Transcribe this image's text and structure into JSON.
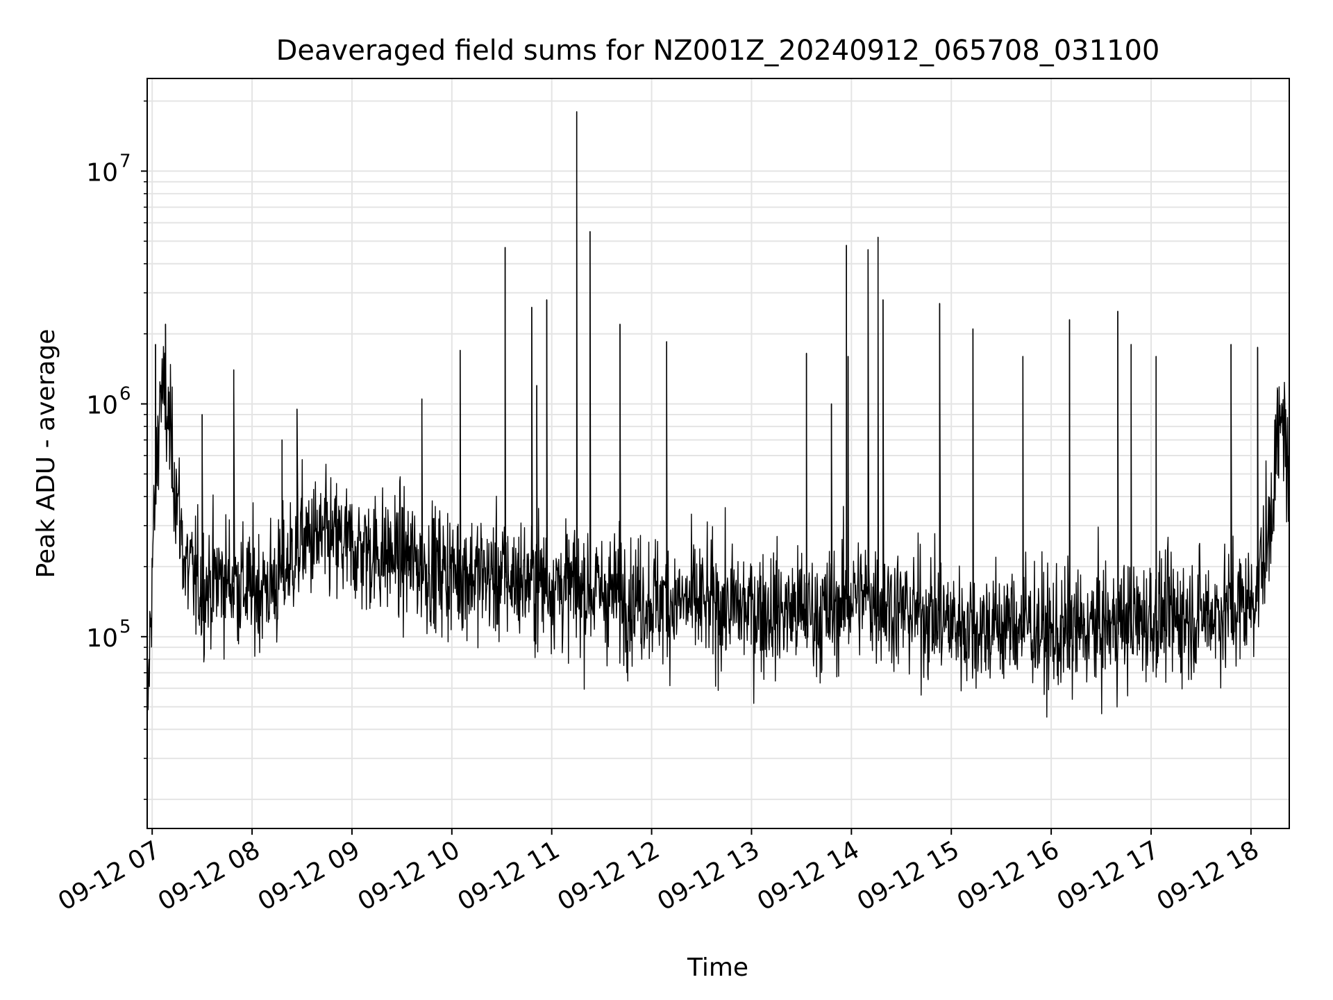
{
  "chart_data": {
    "type": "line",
    "title": "Deaveraged field sums for NZ001Z_20240912_065708_031100",
    "xlabel": "Time",
    "ylabel": "Peak ADU - average",
    "x_ticks": [
      "09-12 07",
      "09-12 08",
      "09-12 09",
      "09-12 10",
      "09-12 11",
      "09-12 12",
      "09-12 13",
      "09-12 14",
      "09-12 15",
      "09-12 16",
      "09-12 17",
      "09-12 18"
    ],
    "y_ticks": [
      {
        "base": "10",
        "exp": "5",
        "value": 100000
      },
      {
        "base": "10",
        "exp": "6",
        "value": 1000000
      },
      {
        "base": "10",
        "exp": "7",
        "value": 10000000
      }
    ],
    "y_scale": "log",
    "xlim": [
      "2024-09-12 06:57",
      "2024-09-12 18:23"
    ],
    "ylim": [
      15000,
      25000000
    ],
    "grid": true,
    "line_color": "#000000",
    "series": [
      {
        "x": [
          "2024-09-12 06:57",
          "2024-09-12 07:00",
          "2024-09-12 07:05",
          "2024-09-12 07:10",
          "2024-09-12 07:15",
          "2024-09-12 07:20",
          "2024-09-12 07:30",
          "2024-09-12 07:40",
          "2024-09-12 07:50",
          "2024-09-12 08:00",
          "2024-09-12 08:15",
          "2024-09-12 08:30",
          "2024-09-12 08:45",
          "2024-09-12 09:00",
          "2024-09-12 09:15",
          "2024-09-12 09:30",
          "2024-09-12 09:45",
          "2024-09-12 10:00",
          "2024-09-12 10:15",
          "2024-09-12 10:30",
          "2024-09-12 10:45",
          "2024-09-12 11:00",
          "2024-09-12 11:15",
          "2024-09-12 11:30",
          "2024-09-12 11:45",
          "2024-09-12 12:00",
          "2024-09-12 12:15",
          "2024-09-12 12:30",
          "2024-09-12 12:45",
          "2024-09-12 13:00",
          "2024-09-12 13:15",
          "2024-09-12 13:30",
          "2024-09-12 13:45",
          "2024-09-12 14:00",
          "2024-09-12 14:15",
          "2024-09-12 14:30",
          "2024-09-12 14:45",
          "2024-09-12 15:00",
          "2024-09-12 15:15",
          "2024-09-12 15:30",
          "2024-09-12 15:45",
          "2024-09-12 16:00",
          "2024-09-12 16:15",
          "2024-09-12 16:30",
          "2024-09-12 16:45",
          "2024-09-12 17:00",
          "2024-09-12 17:15",
          "2024-09-12 17:30",
          "2024-09-12 17:45",
          "2024-09-12 18:00",
          "2024-09-12 18:10",
          "2024-09-12 18:15",
          "2024-09-12 18:20",
          "2024-09-12 18:23"
        ],
        "y": [
          40000,
          200000,
          1200000,
          800000,
          400000,
          200000,
          160000,
          180000,
          170000,
          160000,
          170000,
          260000,
          260000,
          240000,
          230000,
          220000,
          200000,
          190000,
          185000,
          180000,
          175000,
          170000,
          160000,
          155000,
          150000,
          145000,
          140000,
          138000,
          135000,
          132000,
          130000,
          128000,
          125000,
          150000,
          145000,
          130000,
          125000,
          115000,
          110000,
          112000,
          115000,
          100000,
          105000,
          110000,
          115000,
          120000,
          122000,
          125000,
          130000,
          140000,
          250000,
          600000,
          900000,
          350000
        ]
      }
    ],
    "spikes": [
      {
        "x": "2024-09-12 07:02",
        "y": 1800000
      },
      {
        "x": "2024-09-12 07:08",
        "y": 2200000
      },
      {
        "x": "2024-09-12 07:30",
        "y": 900000
      },
      {
        "x": "2024-09-12 07:49",
        "y": 1400000
      },
      {
        "x": "2024-09-12 08:18",
        "y": 700000
      },
      {
        "x": "2024-09-12 08:27",
        "y": 950000
      },
      {
        "x": "2024-09-12 09:42",
        "y": 1050000
      },
      {
        "x": "2024-09-12 10:05",
        "y": 1700000
      },
      {
        "x": "2024-09-12 10:32",
        "y": 4700000
      },
      {
        "x": "2024-09-12 10:48",
        "y": 2600000
      },
      {
        "x": "2024-09-12 10:51",
        "y": 1200000
      },
      {
        "x": "2024-09-12 10:57",
        "y": 2800000
      },
      {
        "x": "2024-09-12 11:15",
        "y": 18000000
      },
      {
        "x": "2024-09-12 11:23",
        "y": 5500000
      },
      {
        "x": "2024-09-12 11:41",
        "y": 2200000
      },
      {
        "x": "2024-09-12 12:09",
        "y": 1850000
      },
      {
        "x": "2024-09-12 13:33",
        "y": 1650000
      },
      {
        "x": "2024-09-12 13:48",
        "y": 1000000
      },
      {
        "x": "2024-09-12 13:57",
        "y": 4800000
      },
      {
        "x": "2024-09-12 13:58",
        "y": 1600000
      },
      {
        "x": "2024-09-12 14:10",
        "y": 4600000
      },
      {
        "x": "2024-09-12 14:16",
        "y": 5200000
      },
      {
        "x": "2024-09-12 14:19",
        "y": 2800000
      },
      {
        "x": "2024-09-12 14:53",
        "y": 2700000
      },
      {
        "x": "2024-09-12 15:13",
        "y": 2100000
      },
      {
        "x": "2024-09-12 15:43",
        "y": 1600000
      },
      {
        "x": "2024-09-12 16:11",
        "y": 2300000
      },
      {
        "x": "2024-09-12 16:40",
        "y": 2500000
      },
      {
        "x": "2024-09-12 16:48",
        "y": 1800000
      },
      {
        "x": "2024-09-12 17:03",
        "y": 1600000
      },
      {
        "x": "2024-09-12 17:48",
        "y": 1800000
      },
      {
        "x": "2024-09-12 18:04",
        "y": 1750000
      },
      {
        "x": "2024-09-12 18:16",
        "y": 1150000
      }
    ]
  }
}
